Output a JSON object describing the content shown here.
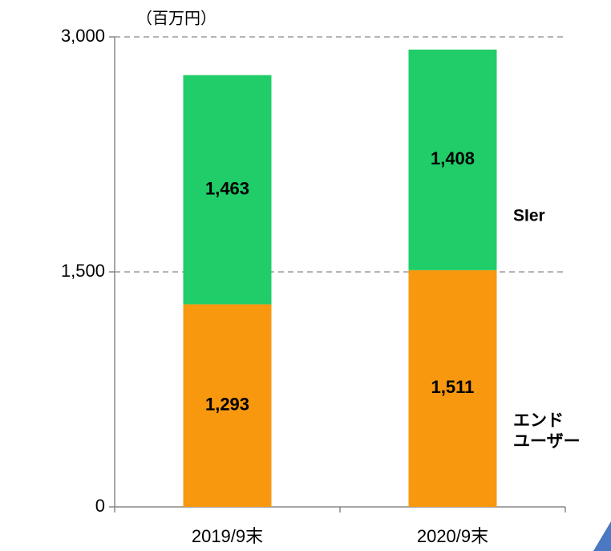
{
  "chart_data": {
    "type": "stacked_bar",
    "unit_label": "（百万円）",
    "categories": [
      "2019/9末",
      "2020/9末"
    ],
    "series": [
      {
        "name": "エンド\nユーザー",
        "color": "#f7980f",
        "values": [
          1293,
          1511
        ],
        "value_labels": [
          "1,293",
          "1,511"
        ]
      },
      {
        "name": "SIer",
        "color": "#20cd69",
        "values": [
          1463,
          1408
        ],
        "value_labels": [
          "1,463",
          "1,408"
        ]
      }
    ],
    "ylim": [
      0,
      3000
    ],
    "yticks": [
      0,
      {
        "value": 1500,
        "label": "1,500"
      },
      {
        "value": 3000,
        "label": "3,000"
      }
    ],
    "grid": true
  }
}
